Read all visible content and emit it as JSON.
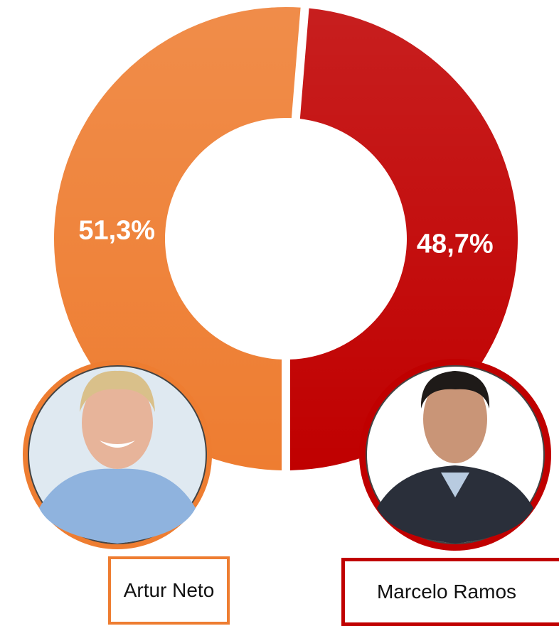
{
  "chart_data": {
    "type": "donut",
    "categories": [
      "Artur Neto",
      "Marcelo Ramos"
    ],
    "values": [
      51.3,
      48.7
    ],
    "value_labels": [
      "51,3%",
      "48,7%"
    ],
    "colors": [
      "#ee7d31",
      "#c00000"
    ]
  }
}
